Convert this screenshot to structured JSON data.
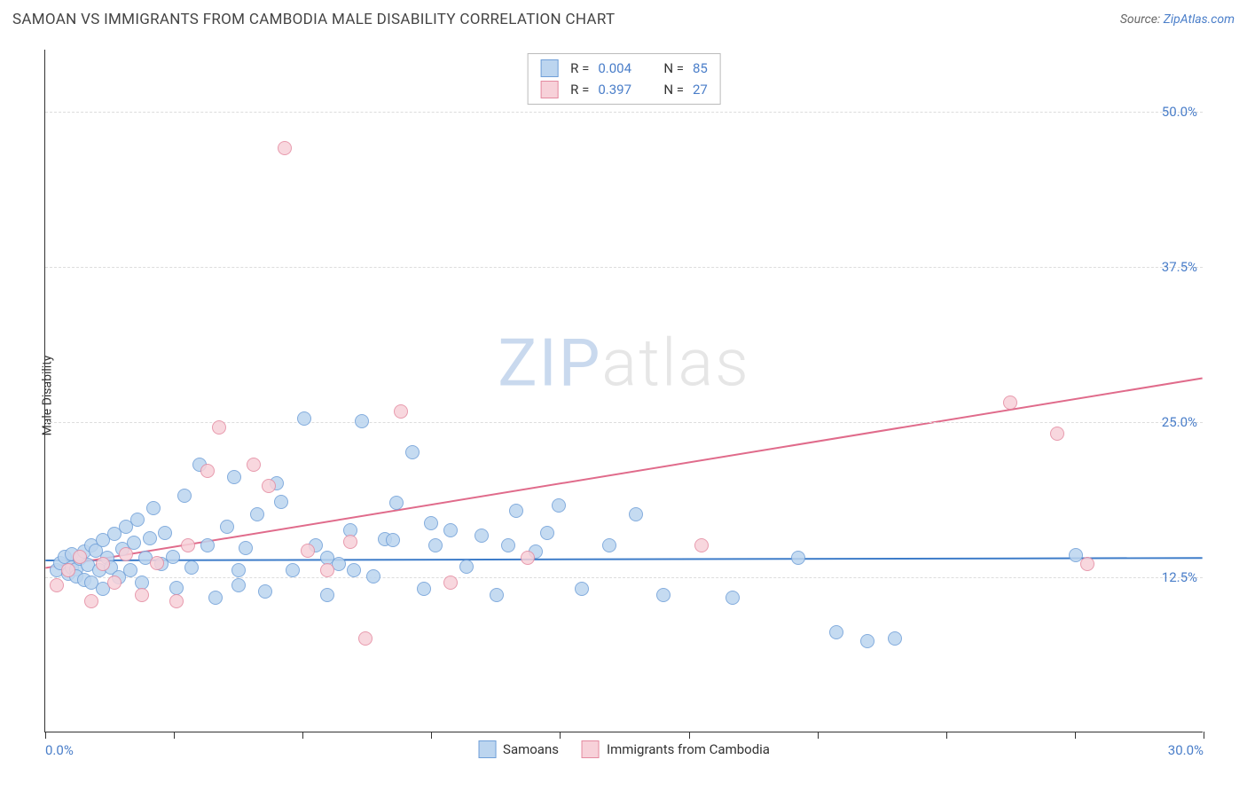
{
  "title": "SAMOAN VS IMMIGRANTS FROM CAMBODIA MALE DISABILITY CORRELATION CHART",
  "source_prefix": "Source: ",
  "source_link": "ZipAtlas.com",
  "watermark_a": "ZIP",
  "watermark_b": "atlas",
  "y_axis_label": "Male Disability",
  "chart": {
    "type": "scatter",
    "xlim": [
      0,
      30
    ],
    "ylim": [
      0,
      55
    ],
    "y_ticks": [
      12.5,
      25.0,
      37.5,
      50.0
    ],
    "y_tick_labels": [
      "12.5%",
      "25.0%",
      "37.5%",
      "50.0%"
    ],
    "x_ticks": [
      0,
      3.33,
      6.67,
      10,
      13.33,
      16.67,
      20,
      23.33,
      26.67,
      30
    ],
    "x_min_label": "0.0%",
    "x_max_label": "30.0%",
    "background_color": "#ffffff",
    "grid_color": "#dddddd",
    "marker_radius": 8,
    "marker_stroke_width": 1,
    "series": [
      {
        "name": "Samoans",
        "fill": "#bcd5ef",
        "stroke": "#6f9fd8",
        "r_value": "0.004",
        "n_value": "85",
        "trend": {
          "y_start": 13.8,
          "y_end": 14.0,
          "color": "#3d7cc9",
          "width": 2
        },
        "points": [
          [
            0.3,
            13.0
          ],
          [
            0.4,
            13.6
          ],
          [
            0.5,
            14.1
          ],
          [
            0.6,
            12.7
          ],
          [
            0.7,
            13.2
          ],
          [
            0.7,
            14.3
          ],
          [
            0.8,
            13.1
          ],
          [
            0.8,
            12.5
          ],
          [
            0.9,
            13.9
          ],
          [
            1.0,
            14.5
          ],
          [
            1.0,
            12.2
          ],
          [
            1.1,
            13.4
          ],
          [
            1.2,
            15.0
          ],
          [
            1.2,
            12.0
          ],
          [
            1.3,
            14.6
          ],
          [
            1.4,
            13.0
          ],
          [
            1.5,
            15.4
          ],
          [
            1.5,
            11.5
          ],
          [
            1.6,
            14.0
          ],
          [
            1.7,
            13.2
          ],
          [
            1.8,
            15.9
          ],
          [
            1.9,
            12.4
          ],
          [
            2.0,
            14.7
          ],
          [
            2.1,
            16.5
          ],
          [
            2.2,
            13.0
          ],
          [
            2.3,
            15.2
          ],
          [
            2.4,
            17.1
          ],
          [
            2.5,
            12.0
          ],
          [
            2.6,
            14.0
          ],
          [
            2.7,
            15.6
          ],
          [
            2.8,
            18.0
          ],
          [
            3.0,
            13.5
          ],
          [
            3.1,
            16.0
          ],
          [
            3.3,
            14.1
          ],
          [
            3.4,
            11.6
          ],
          [
            3.6,
            19.0
          ],
          [
            3.8,
            13.2
          ],
          [
            4.0,
            21.5
          ],
          [
            4.2,
            15.0
          ],
          [
            4.4,
            10.8
          ],
          [
            4.7,
            16.5
          ],
          [
            5.0,
            13.0
          ],
          [
            5.2,
            14.8
          ],
          [
            5.5,
            17.5
          ],
          [
            5.7,
            11.3
          ],
          [
            6.1,
            18.5
          ],
          [
            6.4,
            13.0
          ],
          [
            6.7,
            25.2
          ],
          [
            7.0,
            15.0
          ],
          [
            7.3,
            11.0
          ],
          [
            7.6,
            13.5
          ],
          [
            7.9,
            16.2
          ],
          [
            8.2,
            25.0
          ],
          [
            8.5,
            12.5
          ],
          [
            8.8,
            15.5
          ],
          [
            9.1,
            18.4
          ],
          [
            9.5,
            22.5
          ],
          [
            9.8,
            11.5
          ],
          [
            10.1,
            15.0
          ],
          [
            10.5,
            16.2
          ],
          [
            10.9,
            13.3
          ],
          [
            11.3,
            15.8
          ],
          [
            11.7,
            11.0
          ],
          [
            12.2,
            17.8
          ],
          [
            12.7,
            14.5
          ],
          [
            13.3,
            18.2
          ],
          [
            13.9,
            11.5
          ],
          [
            14.6,
            15.0
          ],
          [
            15.3,
            17.5
          ],
          [
            16.0,
            11.0
          ],
          [
            17.8,
            10.8
          ],
          [
            19.5,
            14.0
          ],
          [
            20.5,
            8.0
          ],
          [
            21.3,
            7.3
          ],
          [
            22.0,
            7.5
          ],
          [
            26.7,
            14.2
          ],
          [
            4.9,
            20.5
          ],
          [
            6.0,
            20.0
          ],
          [
            7.3,
            14.0
          ],
          [
            8.0,
            13.0
          ],
          [
            9.0,
            15.4
          ],
          [
            10.0,
            16.8
          ],
          [
            12.0,
            15.0
          ],
          [
            13.0,
            16.0
          ],
          [
            5.0,
            11.8
          ]
        ]
      },
      {
        "name": "Immigrants from Cambodia",
        "fill": "#f7d1d9",
        "stroke": "#e48aa0",
        "r_value": "0.397",
        "n_value": "27",
        "trend": {
          "y_start": 13.2,
          "y_end": 28.5,
          "color": "#e06b8b",
          "width": 2
        },
        "points": [
          [
            0.3,
            11.8
          ],
          [
            0.6,
            13.0
          ],
          [
            0.9,
            14.1
          ],
          [
            1.2,
            10.5
          ],
          [
            1.5,
            13.5
          ],
          [
            1.8,
            12.0
          ],
          [
            2.1,
            14.3
          ],
          [
            2.5,
            11.0
          ],
          [
            2.9,
            13.6
          ],
          [
            3.4,
            10.5
          ],
          [
            3.7,
            15.0
          ],
          [
            4.2,
            21.0
          ],
          [
            4.5,
            24.5
          ],
          [
            5.4,
            21.5
          ],
          [
            5.8,
            19.8
          ],
          [
            6.2,
            47.0
          ],
          [
            6.8,
            14.6
          ],
          [
            7.3,
            13.0
          ],
          [
            7.9,
            15.3
          ],
          [
            8.3,
            7.5
          ],
          [
            9.2,
            25.8
          ],
          [
            10.5,
            12.0
          ],
          [
            12.5,
            14.0
          ],
          [
            17.0,
            15.0
          ],
          [
            25.0,
            26.5
          ],
          [
            26.2,
            24.0
          ],
          [
            27.0,
            13.5
          ]
        ]
      }
    ]
  },
  "legend_top": [
    {
      "r_label": "R =",
      "n_label": "N ="
    },
    {
      "r_label": "R =",
      "n_label": "N ="
    }
  ],
  "legend_bottom_labels": [
    "Samoans",
    "Immigrants from Cambodia"
  ]
}
